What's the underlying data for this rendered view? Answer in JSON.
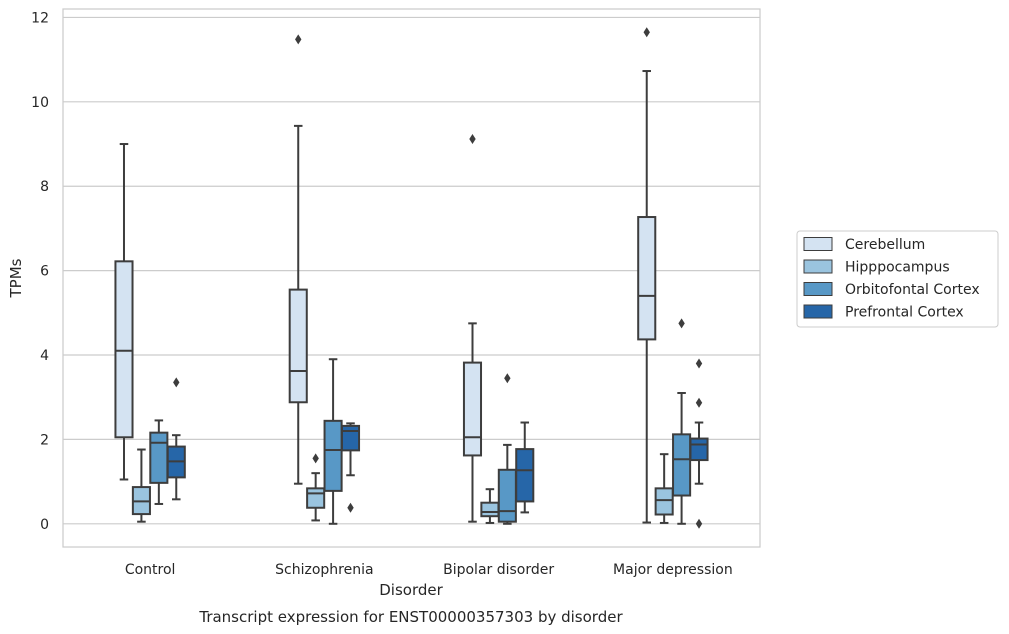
{
  "chart_data": {
    "type": "box",
    "title": "",
    "caption": "Transcript expression for ENST00000357303 by disorder",
    "xlabel": "Disorder",
    "ylabel": "TPMs",
    "categories": [
      "Control",
      "Schizophrenia",
      "Bipolar disorder",
      "Major depression"
    ],
    "ylim": [
      -0.55,
      12.2
    ],
    "yticks": [
      0,
      2,
      4,
      6,
      8,
      10,
      12
    ],
    "grid": "horizontal",
    "legend_position": "right",
    "series": [
      {
        "name": "Cerebellum",
        "color": "#d4e3f2",
        "boxes": [
          {
            "whislo": 1.05,
            "q1": 2.05,
            "med": 4.1,
            "q3": 6.22,
            "whishi": 9.0,
            "fliers": []
          },
          {
            "whislo": 0.95,
            "q1": 2.88,
            "med": 3.62,
            "q3": 5.55,
            "whishi": 9.43,
            "fliers": [
              11.48
            ]
          },
          {
            "whislo": 0.05,
            "q1": 1.62,
            "med": 2.05,
            "q3": 3.82,
            "whishi": 4.75,
            "fliers": [
              9.12
            ]
          },
          {
            "whislo": 0.03,
            "q1": 4.37,
            "med": 5.4,
            "q3": 7.27,
            "whishi": 10.73,
            "fliers": [
              11.65
            ]
          }
        ]
      },
      {
        "name": "Hipppocampus",
        "color": "#9ac4df",
        "boxes": [
          {
            "whislo": 0.05,
            "q1": 0.23,
            "med": 0.53,
            "q3": 0.87,
            "whishi": 1.76,
            "fliers": []
          },
          {
            "whislo": 0.08,
            "q1": 0.38,
            "med": 0.72,
            "q3": 0.84,
            "whishi": 1.2,
            "fliers": [
              1.55
            ]
          },
          {
            "whislo": 0.02,
            "q1": 0.18,
            "med": 0.28,
            "q3": 0.5,
            "whishi": 0.82,
            "fliers": []
          },
          {
            "whislo": 0.02,
            "q1": 0.22,
            "med": 0.56,
            "q3": 0.84,
            "whishi": 1.65,
            "fliers": []
          }
        ]
      },
      {
        "name": "Orbitofontal Cortex",
        "color": "#5898c6",
        "boxes": [
          {
            "whislo": 0.47,
            "q1": 0.97,
            "med": 1.92,
            "q3": 2.16,
            "whishi": 2.45,
            "fliers": []
          },
          {
            "whislo": 0.0,
            "q1": 0.78,
            "med": 1.75,
            "q3": 2.44,
            "whishi": 3.9,
            "fliers": []
          },
          {
            "whislo": 0.0,
            "q1": 0.05,
            "med": 0.3,
            "q3": 1.28,
            "whishi": 1.87,
            "fliers": [
              3.45
            ]
          },
          {
            "whislo": 0.0,
            "q1": 0.67,
            "med": 1.53,
            "q3": 2.12,
            "whishi": 3.1,
            "fliers": [
              4.75
            ]
          }
        ]
      },
      {
        "name": "Prefrontal Cortex",
        "color": "#2666a8",
        "boxes": [
          {
            "whislo": 0.58,
            "q1": 1.1,
            "med": 1.48,
            "q3": 1.83,
            "whishi": 2.1,
            "fliers": [
              3.35
            ]
          },
          {
            "whislo": 1.15,
            "q1": 1.74,
            "med": 2.2,
            "q3": 2.32,
            "whishi": 2.38,
            "fliers": [
              0.38
            ]
          },
          {
            "whislo": 0.27,
            "q1": 0.53,
            "med": 1.27,
            "q3": 1.77,
            "whishi": 2.4,
            "fliers": []
          },
          {
            "whislo": 0.95,
            "q1": 1.51,
            "med": 1.88,
            "q3": 2.02,
            "whishi": 2.4,
            "fliers": [
              3.8,
              2.87,
              0.0
            ]
          }
        ]
      }
    ]
  }
}
